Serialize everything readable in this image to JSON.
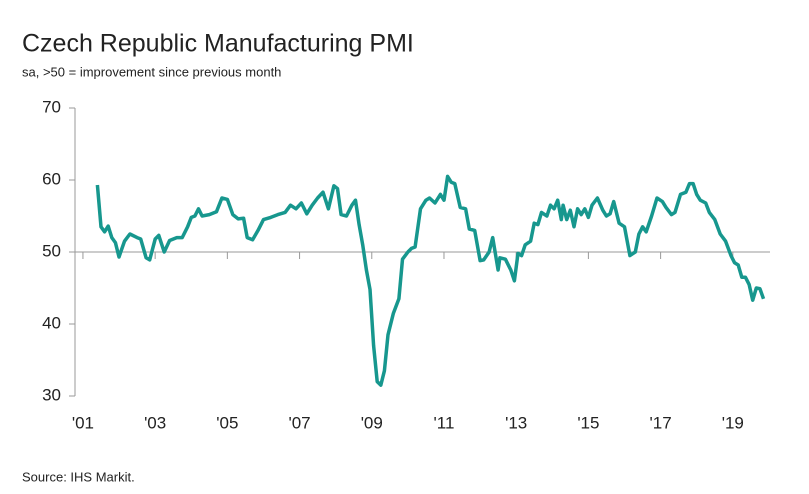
{
  "chart_data": {
    "type": "line",
    "title": "Czech Republic Manufacturing PMI",
    "subtitle": "sa, >50 = improvement since previous month",
    "source": "Source: IHS Markit.",
    "x": [
      2001.4,
      2001.5,
      2001.6,
      2001.7,
      2001.8,
      2001.9,
      2002.0,
      2002.15,
      2002.3,
      2002.5,
      2002.6,
      2002.75,
      2002.85,
      2003.0,
      2003.1,
      2003.25,
      2003.4,
      2003.6,
      2003.75,
      2003.9,
      2004.0,
      2004.1,
      2004.2,
      2004.3,
      2004.5,
      2004.7,
      2004.85,
      2005.0,
      2005.15,
      2005.3,
      2005.45,
      2005.55,
      2005.7,
      2005.85,
      2006.0,
      2006.2,
      2006.4,
      2006.6,
      2006.75,
      2006.9,
      2007.05,
      2007.2,
      2007.35,
      2007.5,
      2007.65,
      2007.8,
      2007.95,
      2008.05,
      2008.15,
      2008.3,
      2008.45,
      2008.55,
      2008.65,
      2008.75,
      2008.85,
      2008.95,
      2009.05,
      2009.15,
      2009.25,
      2009.35,
      2009.45,
      2009.6,
      2009.75,
      2009.85,
      2010.0,
      2010.1,
      2010.2,
      2010.35,
      2010.5,
      2010.6,
      2010.75,
      2010.9,
      2011.0,
      2011.1,
      2011.2,
      2011.3,
      2011.45,
      2011.6,
      2011.7,
      2011.85,
      2012.0,
      2012.1,
      2012.25,
      2012.35,
      2012.5,
      2012.55,
      2012.7,
      2012.85,
      2012.95,
      2013.05,
      2013.15,
      2013.25,
      2013.4,
      2013.5,
      2013.6,
      2013.7,
      2013.85,
      2013.95,
      2014.05,
      2014.15,
      2014.25,
      2014.3,
      2014.4,
      2014.5,
      2014.6,
      2014.7,
      2014.8,
      2014.9,
      2015.0,
      2015.1,
      2015.25,
      2015.4,
      2015.5,
      2015.6,
      2015.7,
      2015.85,
      2016.0,
      2016.15,
      2016.3,
      2016.4,
      2016.5,
      2016.6,
      2016.75,
      2016.9,
      2017.05,
      2017.15,
      2017.3,
      2017.4,
      2017.55,
      2017.7,
      2017.8,
      2017.9,
      2018.0,
      2018.1,
      2018.25,
      2018.35,
      2018.5,
      2018.65,
      2018.8,
      2018.95,
      2019.05,
      2019.15,
      2019.25,
      2019.35,
      2019.45,
      2019.55,
      2019.65,
      2019.75,
      2019.85
    ],
    "series": [
      {
        "name": "PMI",
        "color": "#17978e",
        "values": [
          59.3,
          53.5,
          52.8,
          53.6,
          52.0,
          51.3,
          49.3,
          51.5,
          52.5,
          52.0,
          51.8,
          49.2,
          48.9,
          51.8,
          52.3,
          50.0,
          51.6,
          52.0,
          52.0,
          53.5,
          54.8,
          55.0,
          56.0,
          55.0,
          55.2,
          55.6,
          57.5,
          57.3,
          55.2,
          54.6,
          54.7,
          52.0,
          51.7,
          53.0,
          54.5,
          54.8,
          55.2,
          55.5,
          56.5,
          56.0,
          56.8,
          55.3,
          56.5,
          57.5,
          58.3,
          56.0,
          59.2,
          58.8,
          55.2,
          55.0,
          56.5,
          57.2,
          53.8,
          51.0,
          47.5,
          44.8,
          37.0,
          32.0,
          31.5,
          33.5,
          38.5,
          41.5,
          43.5,
          49.0,
          50.0,
          50.5,
          50.7,
          56.0,
          57.2,
          57.5,
          56.8,
          58.0,
          57.2,
          60.5,
          59.7,
          59.5,
          56.2,
          56.0,
          53.2,
          53.0,
          48.8,
          48.9,
          50.0,
          52.0,
          47.5,
          49.2,
          49.0,
          47.5,
          46.0,
          49.8,
          49.5,
          51.0,
          51.5,
          54.0,
          53.8,
          55.5,
          55.0,
          56.5,
          56.0,
          57.2,
          54.5,
          56.5,
          54.5,
          55.8,
          53.5,
          56.0,
          55.2,
          56.0,
          54.8,
          56.5,
          57.5,
          55.8,
          55.0,
          55.3,
          57.0,
          54.0,
          53.5,
          49.5,
          50.0,
          52.5,
          53.5,
          52.8,
          55.0,
          57.5,
          57.0,
          56.2,
          55.2,
          55.5,
          58.0,
          58.3,
          59.5,
          59.5,
          58.0,
          57.2,
          56.8,
          55.5,
          54.5,
          52.5,
          51.5,
          49.5,
          48.5,
          48.2,
          46.5,
          46.5,
          45.5,
          43.3,
          45.0,
          44.9,
          43.5
        ]
      }
    ],
    "xlim": [
      2000.78,
      2020.03
    ],
    "xticks": [
      {
        "value": 2001,
        "label": "'01"
      },
      {
        "value": 2003,
        "label": "'03"
      },
      {
        "value": 2005,
        "label": "'05"
      },
      {
        "value": 2007,
        "label": "'07"
      },
      {
        "value": 2009,
        "label": "'09"
      },
      {
        "value": 2011,
        "label": "'11"
      },
      {
        "value": 2013,
        "label": "'13"
      },
      {
        "value": 2015,
        "label": "'15"
      },
      {
        "value": 2017,
        "label": "'17"
      },
      {
        "value": 2019,
        "label": "'19"
      }
    ],
    "ylim": [
      30,
      70
    ],
    "yticks": [
      30,
      40,
      50,
      60,
      70
    ],
    "baseline": 50
  }
}
